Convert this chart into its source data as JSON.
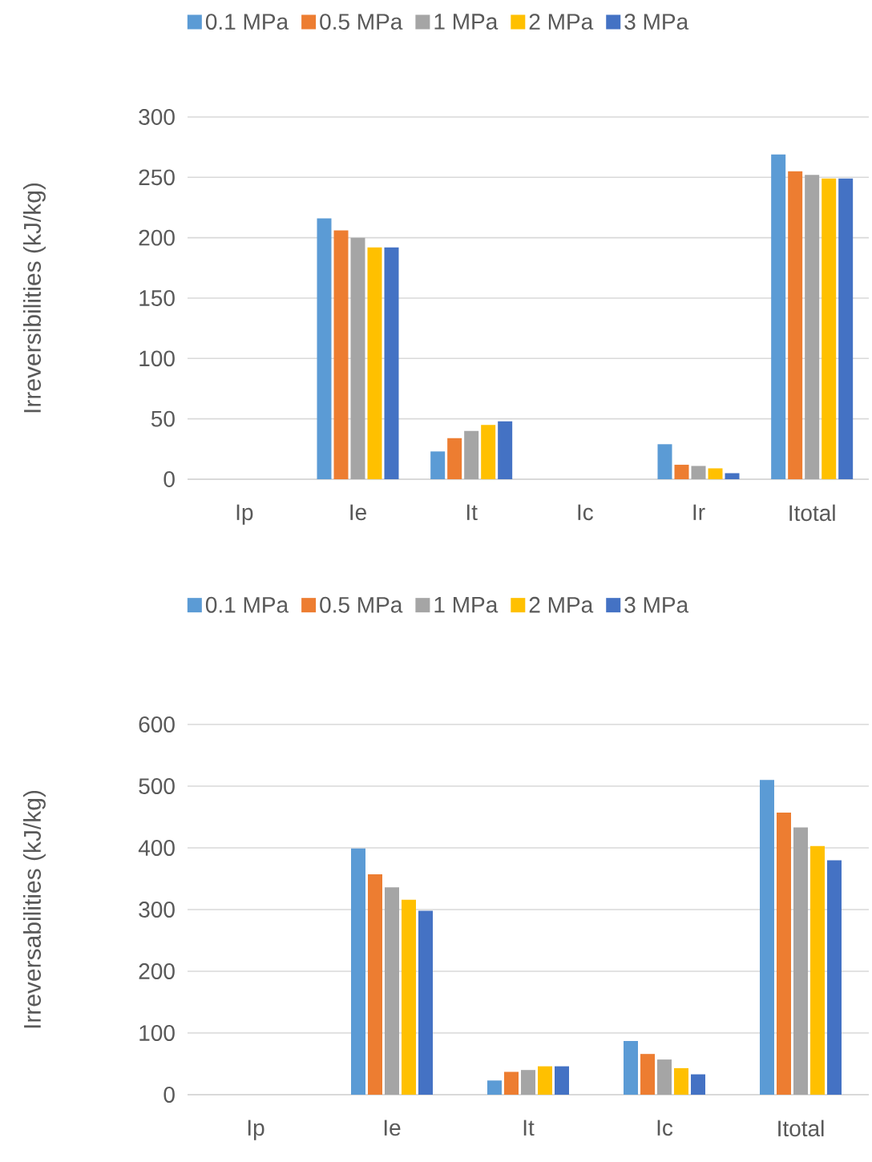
{
  "chart_data": [
    {
      "type": "bar",
      "ylabel": "Irreversibilities (kJ/kg)",
      "categories": [
        "Ip",
        "Ie",
        "It",
        "Ic",
        "Ir",
        "Itotal"
      ],
      "ylim": [
        0,
        300
      ],
      "yticks": [
        0,
        50,
        100,
        150,
        200,
        250,
        300
      ],
      "grid": "y",
      "legend": "top",
      "series": [
        {
          "name": "0.1 MPa",
          "color": "#5b9bd5",
          "values": [
            0,
            216,
            23,
            0,
            29,
            269
          ]
        },
        {
          "name": "0.5 MPa",
          "color": "#ed7d31",
          "values": [
            0,
            206,
            34,
            0,
            12,
            255
          ]
        },
        {
          "name": "1 MPa",
          "color": "#a5a5a5",
          "values": [
            0,
            200,
            40,
            0,
            11,
            252
          ]
        },
        {
          "name": "2 MPa",
          "color": "#ffc000",
          "values": [
            0,
            192,
            45,
            0,
            9,
            249
          ]
        },
        {
          "name": "3 MPa",
          "color": "#4472c4",
          "values": [
            0,
            192,
            48,
            0,
            5,
            249
          ]
        }
      ]
    },
    {
      "type": "bar",
      "ylabel": "Irreversabilities (kJ/kg)",
      "categories": [
        "Ip",
        "Ie",
        "It",
        "Ic",
        "Itotal"
      ],
      "ylim": [
        0,
        600
      ],
      "yticks": [
        0,
        100,
        200,
        300,
        400,
        500,
        600
      ],
      "grid": "y",
      "legend": "top",
      "series": [
        {
          "name": "0.1 MPa",
          "color": "#5b9bd5",
          "values": [
            0,
            399,
            23,
            87,
            510
          ]
        },
        {
          "name": "0.5 MPa",
          "color": "#ed7d31",
          "values": [
            0,
            357,
            37,
            66,
            457
          ]
        },
        {
          "name": "1 MPa",
          "color": "#a5a5a5",
          "values": [
            0,
            336,
            40,
            57,
            433
          ]
        },
        {
          "name": "2 MPa",
          "color": "#ffc000",
          "values": [
            0,
            316,
            46,
            43,
            403
          ]
        },
        {
          "name": "3 MPa",
          "color": "#4472c4",
          "values": [
            0,
            298,
            46,
            33,
            380
          ]
        }
      ]
    }
  ]
}
